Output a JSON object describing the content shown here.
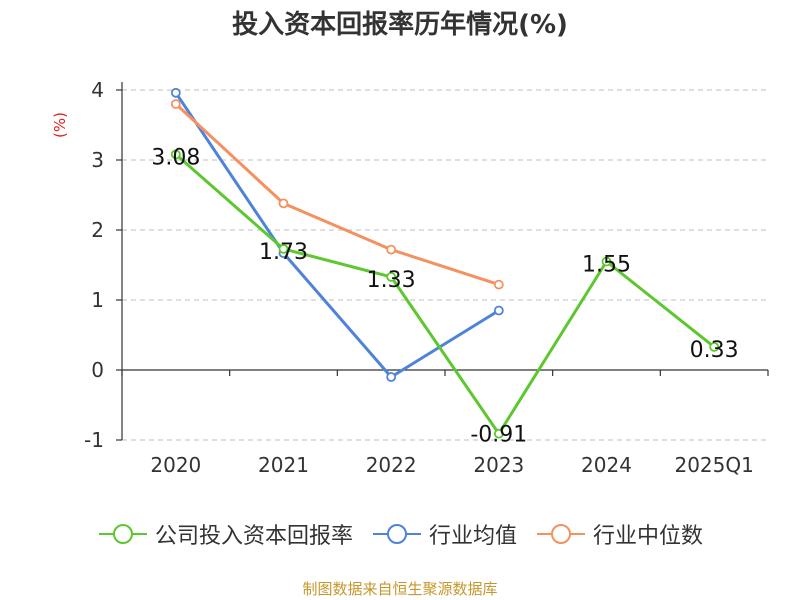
{
  "title": "投入资本回报率历年情况(%)",
  "source": "制图数据来自恒生聚源数据库",
  "chart_data": {
    "type": "line",
    "title": "投入资本回报率历年情况(%)",
    "ylabel": "(%)",
    "ylim": [
      -1,
      4
    ],
    "yticks": [
      4,
      3,
      2,
      1,
      0,
      -1
    ],
    "grid": true,
    "legend_position": "bottom",
    "categories": [
      "2020",
      "2021",
      "2022",
      "2023",
      "2024",
      "2025Q1"
    ],
    "series": [
      {
        "name": "公司投入资本回报率",
        "color": "#5cc72e",
        "values": [
          3.08,
          1.73,
          1.33,
          -0.91,
          1.55,
          0.33
        ],
        "labels": [
          "3.08",
          "1.73",
          "1.33",
          "-0.91",
          "1.55",
          "0.33"
        ]
      },
      {
        "name": "行业均值",
        "color": "#4f83d9",
        "values": [
          3.96,
          1.67,
          -0.1,
          0.85,
          null,
          null
        ]
      },
      {
        "name": "行业中位数",
        "color": "#f59160",
        "values": [
          3.8,
          2.38,
          1.72,
          1.22,
          null,
          null
        ]
      }
    ]
  }
}
